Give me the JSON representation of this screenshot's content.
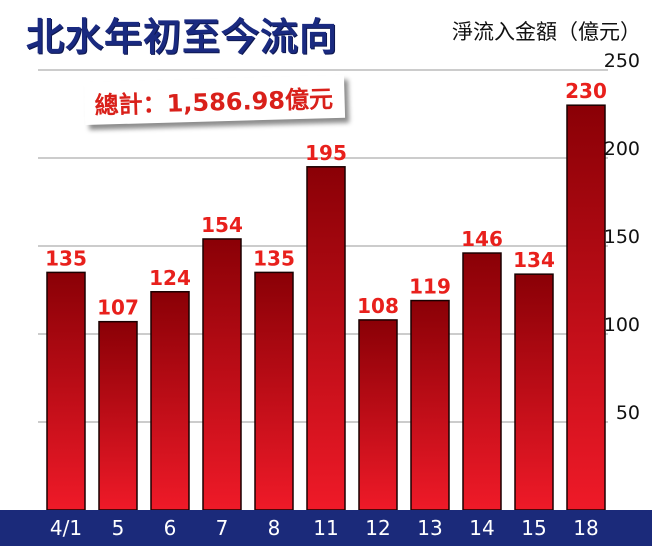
{
  "chart_data": {
    "type": "bar",
    "title": "北水年初至今流向",
    "ylabel": "淨流入金額（億元）",
    "annotation": "總計：1,586.98億元",
    "categories": [
      "4/1",
      "5",
      "6",
      "7",
      "8",
      "11",
      "12",
      "13",
      "14",
      "15",
      "18"
    ],
    "values": [
      135,
      107,
      124,
      154,
      135,
      195,
      108,
      119,
      146,
      134,
      230
    ],
    "data_labels": [
      "135",
      "107",
      "124",
      "154",
      "135",
      "195",
      "108",
      "119",
      "146",
      "134",
      "230"
    ],
    "yticks": [
      50,
      100,
      150,
      200,
      250
    ],
    "ytick_labels": [
      "50",
      "100",
      "150",
      "200",
      "250"
    ],
    "ylim": [
      0,
      250
    ],
    "yaxis_side": "right",
    "grid": true,
    "colors": {
      "bar_top": "#8a0006",
      "bar_bottom": "#ef1a28",
      "axis_band": "#1b2a7a",
      "grid": "#9a9a9a",
      "title": "#1a2a80",
      "value_label": "#e8201c"
    }
  }
}
